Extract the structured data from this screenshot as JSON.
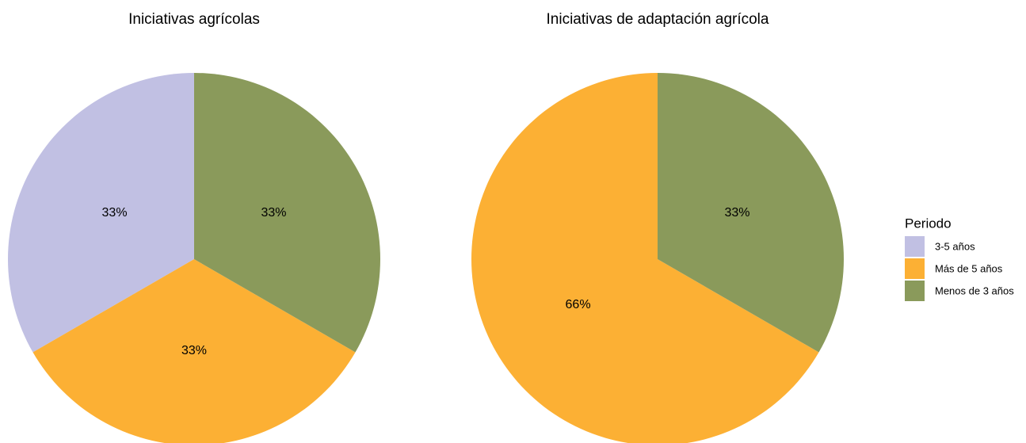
{
  "chart_data": [
    {
      "type": "pie",
      "title": "Iniciativas agrícolas",
      "categories": [
        "3-5 años",
        "Más de 5 años",
        "Menos de 3 años"
      ],
      "values": [
        33,
        33,
        33
      ],
      "value_labels": [
        "33%",
        "33%",
        "33%"
      ],
      "colors": [
        "#c1c0e3",
        "#fcb034",
        "#8a9a5b"
      ],
      "legend_title": "Periodo",
      "legend": "right"
    },
    {
      "type": "pie",
      "title": "Iniciativas de adaptación agrícola",
      "categories": [
        "Más de 5 años",
        "Menos de 3 años"
      ],
      "values": [
        66,
        33
      ],
      "value_labels": [
        "66%",
        "33%"
      ],
      "colors": [
        "#fcb034",
        "#8a9a5b"
      ]
    }
  ]
}
